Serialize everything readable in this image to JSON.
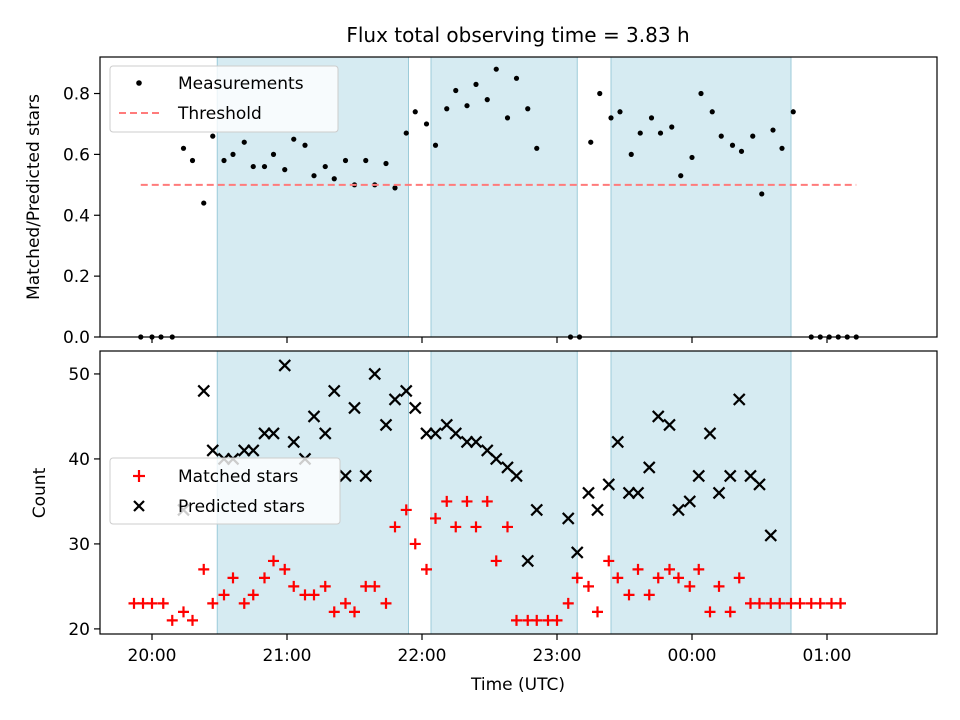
{
  "chart_data": [
    {
      "type": "scatter",
      "title": "Flux total observing time = 3.83 h",
      "xlabel": "",
      "ylabel": "Matched/Predicted stars",
      "ylim": [
        0,
        0.92
      ],
      "yticks": [
        "0.0",
        "0.2",
        "0.4",
        "0.6",
        "0.8"
      ],
      "ytick_values": [
        0,
        0.2,
        0.4,
        0.6,
        0.8
      ],
      "legend_position": "top-left",
      "shaded_intervals": [
        [
          "20:29",
          "21:54"
        ],
        [
          "22:04",
          "23:09"
        ],
        [
          "23:24",
          "00:44"
        ]
      ],
      "series": [
        {
          "name": "Measurements",
          "marker": "dot",
          "color": "#000000",
          "points": [
            [
              "19:55",
              0.0
            ],
            [
              "20:00",
              0.0
            ],
            [
              "20:04",
              0.0
            ],
            [
              "20:09",
              0.0
            ],
            [
              "20:14",
              0.62
            ],
            [
              "20:18",
              0.58
            ],
            [
              "20:23",
              0.44
            ],
            [
              "20:27",
              0.66
            ],
            [
              "20:32",
              0.58
            ],
            [
              "20:36",
              0.6
            ],
            [
              "20:41",
              0.64
            ],
            [
              "20:45",
              0.56
            ],
            [
              "20:50",
              0.56
            ],
            [
              "20:54",
              0.6
            ],
            [
              "20:59",
              0.55
            ],
            [
              "21:03",
              0.65
            ],
            [
              "21:08",
              0.63
            ],
            [
              "21:12",
              0.53
            ],
            [
              "21:17",
              0.56
            ],
            [
              "21:21",
              0.52
            ],
            [
              "21:26",
              0.58
            ],
            [
              "21:30",
              0.5
            ],
            [
              "21:35",
              0.58
            ],
            [
              "21:39",
              0.5
            ],
            [
              "21:44",
              0.57
            ],
            [
              "21:48",
              0.49
            ],
            [
              "21:53",
              0.67
            ],
            [
              "21:57",
              0.74
            ],
            [
              "22:02",
              0.7
            ],
            [
              "22:06",
              0.63
            ],
            [
              "22:11",
              0.75
            ],
            [
              "22:15",
              0.81
            ],
            [
              "22:20",
              0.76
            ],
            [
              "22:24",
              0.83
            ],
            [
              "22:29",
              0.78
            ],
            [
              "22:33",
              0.88
            ],
            [
              "22:38",
              0.72
            ],
            [
              "22:42",
              0.85
            ],
            [
              "22:47",
              0.75
            ],
            [
              "22:51",
              0.62
            ],
            [
              "23:06",
              0.0
            ],
            [
              "23:10",
              0.0
            ],
            [
              "23:15",
              0.64
            ],
            [
              "23:19",
              0.8
            ],
            [
              "23:24",
              0.72
            ],
            [
              "23:28",
              0.74
            ],
            [
              "23:33",
              0.6
            ],
            [
              "23:37",
              0.67
            ],
            [
              "23:42",
              0.72
            ],
            [
              "23:46",
              0.67
            ],
            [
              "23:51",
              0.69
            ],
            [
              "23:55",
              0.53
            ],
            [
              "00:00",
              0.59
            ],
            [
              "00:04",
              0.8
            ],
            [
              "00:09",
              0.74
            ],
            [
              "00:13",
              0.66
            ],
            [
              "00:18",
              0.63
            ],
            [
              "00:22",
              0.61
            ],
            [
              "00:27",
              0.66
            ],
            [
              "00:31",
              0.47
            ],
            [
              "00:36",
              0.68
            ],
            [
              "00:40",
              0.62
            ],
            [
              "00:45",
              0.74
            ],
            [
              "00:53",
              0.0
            ],
            [
              "00:57",
              0.0
            ],
            [
              "01:01",
              0.0
            ],
            [
              "01:05",
              0.0
            ],
            [
              "01:09",
              0.0
            ],
            [
              "01:13",
              0.0
            ]
          ]
        },
        {
          "name": "Threshold",
          "marker": "dashed-line",
          "color": "#ff7b7b",
          "points": [
            [
              "19:55",
              0.5
            ],
            [
              "01:13",
              0.5
            ]
          ]
        }
      ]
    },
    {
      "type": "scatter",
      "title": "",
      "xlabel": "Time (UTC)",
      "ylabel": "Count",
      "ylim": [
        19.4,
        52.7
      ],
      "yticks": [
        "20",
        "30",
        "40",
        "50"
      ],
      "ytick_values": [
        20,
        30,
        40,
        50
      ],
      "xticks": [
        "20:00",
        "21:00",
        "22:00",
        "23:00",
        "00:00",
        "01:00"
      ],
      "legend_position": "center-left",
      "shaded_intervals": [
        [
          "20:29",
          "21:54"
        ],
        [
          "22:04",
          "23:09"
        ],
        [
          "23:24",
          "00:44"
        ]
      ],
      "series": [
        {
          "name": "Matched stars",
          "marker": "plus",
          "color": "#ff0000",
          "points": [
            [
              "19:52",
              23
            ],
            [
              "19:56",
              23
            ],
            [
              "20:00",
              23
            ],
            [
              "20:05",
              23
            ],
            [
              "20:09",
              21
            ],
            [
              "20:14",
              22
            ],
            [
              "20:18",
              21
            ],
            [
              "20:23",
              27
            ],
            [
              "20:27",
              23
            ],
            [
              "20:32",
              24
            ],
            [
              "20:36",
              26
            ],
            [
              "20:41",
              23
            ],
            [
              "20:45",
              24
            ],
            [
              "20:50",
              26
            ],
            [
              "20:54",
              28
            ],
            [
              "20:59",
              27
            ],
            [
              "21:03",
              25
            ],
            [
              "21:08",
              24
            ],
            [
              "21:12",
              24
            ],
            [
              "21:17",
              25
            ],
            [
              "21:21",
              22
            ],
            [
              "21:26",
              23
            ],
            [
              "21:30",
              22
            ],
            [
              "21:35",
              25
            ],
            [
              "21:39",
              25
            ],
            [
              "21:44",
              23
            ],
            [
              "21:48",
              32
            ],
            [
              "21:53",
              34
            ],
            [
              "21:57",
              30
            ],
            [
              "22:02",
              27
            ],
            [
              "22:06",
              33
            ],
            [
              "22:11",
              35
            ],
            [
              "22:15",
              32
            ],
            [
              "22:20",
              35
            ],
            [
              "22:24",
              32
            ],
            [
              "22:29",
              35
            ],
            [
              "22:33",
              28
            ],
            [
              "22:38",
              32
            ],
            [
              "22:42",
              21
            ],
            [
              "22:47",
              21
            ],
            [
              "22:51",
              21
            ],
            [
              "22:56",
              21
            ],
            [
              "23:00",
              21
            ],
            [
              "23:05",
              23
            ],
            [
              "23:09",
              26
            ],
            [
              "23:14",
              25
            ],
            [
              "23:18",
              22
            ],
            [
              "23:23",
              28
            ],
            [
              "23:27",
              26
            ],
            [
              "23:32",
              24
            ],
            [
              "23:36",
              27
            ],
            [
              "23:41",
              24
            ],
            [
              "23:45",
              26
            ],
            [
              "23:50",
              27
            ],
            [
              "23:54",
              26
            ],
            [
              "23:59",
              25
            ],
            [
              "00:03",
              27
            ],
            [
              "00:08",
              22
            ],
            [
              "00:12",
              25
            ],
            [
              "00:17",
              22
            ],
            [
              "00:21",
              26
            ],
            [
              "00:26",
              23
            ],
            [
              "00:30",
              23
            ],
            [
              "00:35",
              23
            ],
            [
              "00:39",
              23
            ],
            [
              "00:44",
              23
            ],
            [
              "00:48",
              23
            ],
            [
              "00:53",
              23
            ],
            [
              "00:57",
              23
            ],
            [
              "01:02",
              23
            ],
            [
              "01:06",
              23
            ]
          ]
        },
        {
          "name": "Predicted stars",
          "marker": "x",
          "color": "#000000",
          "points": [
            [
              "20:14",
              34
            ],
            [
              "20:23",
              48
            ],
            [
              "20:27",
              41
            ],
            [
              "20:32",
              40
            ],
            [
              "20:36",
              40
            ],
            [
              "20:41",
              41
            ],
            [
              "20:45",
              41
            ],
            [
              "20:50",
              43
            ],
            [
              "20:54",
              43
            ],
            [
              "20:59",
              51
            ],
            [
              "21:03",
              42
            ],
            [
              "21:08",
              40
            ],
            [
              "21:12",
              45
            ],
            [
              "21:17",
              43
            ],
            [
              "21:21",
              48
            ],
            [
              "21:26",
              38
            ],
            [
              "21:30",
              46
            ],
            [
              "21:35",
              38
            ],
            [
              "21:39",
              50
            ],
            [
              "21:44",
              44
            ],
            [
              "21:48",
              47
            ],
            [
              "21:53",
              48
            ],
            [
              "21:57",
              46
            ],
            [
              "22:02",
              43
            ],
            [
              "22:06",
              43
            ],
            [
              "22:11",
              44
            ],
            [
              "22:15",
              43
            ],
            [
              "22:20",
              42
            ],
            [
              "22:24",
              42
            ],
            [
              "22:29",
              41
            ],
            [
              "22:33",
              40
            ],
            [
              "22:38",
              39
            ],
            [
              "22:42",
              38
            ],
            [
              "22:47",
              28
            ],
            [
              "22:51",
              34
            ],
            [
              "23:05",
              33
            ],
            [
              "23:09",
              29
            ],
            [
              "23:14",
              36
            ],
            [
              "23:18",
              34
            ],
            [
              "23:23",
              37
            ],
            [
              "23:27",
              42
            ],
            [
              "23:32",
              36
            ],
            [
              "23:36",
              36
            ],
            [
              "23:41",
              39
            ],
            [
              "23:45",
              45
            ],
            [
              "23:50",
              44
            ],
            [
              "23:54",
              34
            ],
            [
              "23:59",
              35
            ],
            [
              "00:03",
              38
            ],
            [
              "00:08",
              43
            ],
            [
              "00:12",
              36
            ],
            [
              "00:17",
              38
            ],
            [
              "00:21",
              47
            ],
            [
              "00:26",
              38
            ],
            [
              "00:30",
              37
            ],
            [
              "00:35",
              31
            ]
          ]
        }
      ]
    }
  ]
}
